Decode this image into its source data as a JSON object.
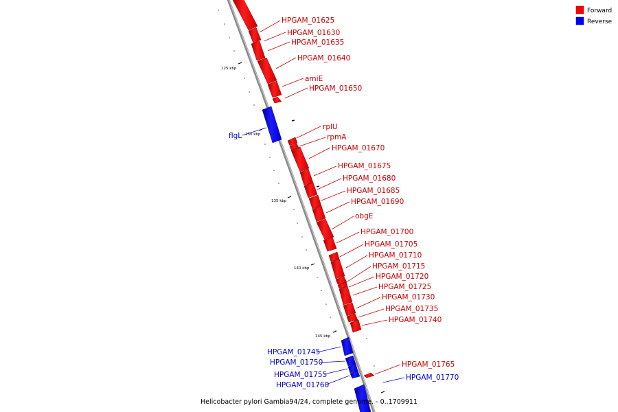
{
  "legend": [
    {
      "label": "Forward",
      "color": "#ff0000"
    },
    {
      "label": "Reverse",
      "color": "#0000ff"
    }
  ],
  "caption": "Helicobacter pylori Gambia94/24, complete genome. - 0..1709911",
  "ticks": [
    {
      "label": "125 kbp",
      "pos": 125000
    },
    {
      "label": "130 kbp",
      "pos": 130000
    },
    {
      "label": "135 kbp",
      "pos": 135000
    },
    {
      "label": "140 kbp",
      "pos": 140000
    },
    {
      "label": "145 kbp",
      "pos": 145000
    }
  ],
  "genes": [
    {
      "label": "HPGAM_01625",
      "strand": "forward"
    },
    {
      "label": "HPGAM_01630",
      "strand": "forward"
    },
    {
      "label": "HPGAM_01635",
      "strand": "forward"
    },
    {
      "label": "HPGAM_01640",
      "strand": "forward"
    },
    {
      "label": "amiE",
      "strand": "forward"
    },
    {
      "label": "HPGAM_01650",
      "strand": "forward"
    },
    {
      "label": "flgL",
      "strand": "reverse"
    },
    {
      "label": "rplU",
      "strand": "forward"
    },
    {
      "label": "rpmA",
      "strand": "forward"
    },
    {
      "label": "HPGAM_01670",
      "strand": "forward"
    },
    {
      "label": "HPGAM_01675",
      "strand": "forward"
    },
    {
      "label": "HPGAM_01680",
      "strand": "forward"
    },
    {
      "label": "HPGAM_01685",
      "strand": "forward"
    },
    {
      "label": "HPGAM_01690",
      "strand": "forward"
    },
    {
      "label": "obgE",
      "strand": "forward"
    },
    {
      "label": "HPGAM_01700",
      "strand": "forward"
    },
    {
      "label": "HPGAM_01705",
      "strand": "forward"
    },
    {
      "label": "HPGAM_01710",
      "strand": "forward"
    },
    {
      "label": "HPGAM_01715",
      "strand": "forward"
    },
    {
      "label": "HPGAM_01720",
      "strand": "forward"
    },
    {
      "label": "HPGAM_01725",
      "strand": "forward"
    },
    {
      "label": "HPGAM_01730",
      "strand": "forward"
    },
    {
      "label": "HPGAM_01735",
      "strand": "forward"
    },
    {
      "label": "HPGAM_01740",
      "strand": "forward"
    },
    {
      "label": "HPGAM_01745",
      "strand": "reverse"
    },
    {
      "label": "HPGAM_01750",
      "strand": "reverse"
    },
    {
      "label": "HPGAM_01755",
      "strand": "reverse"
    },
    {
      "label": "HPGAM_01760",
      "strand": "reverse"
    },
    {
      "label": "HPGAM_01765",
      "strand": "forward"
    },
    {
      "label": "HPGAM_01770",
      "strand": "reverse"
    }
  ]
}
